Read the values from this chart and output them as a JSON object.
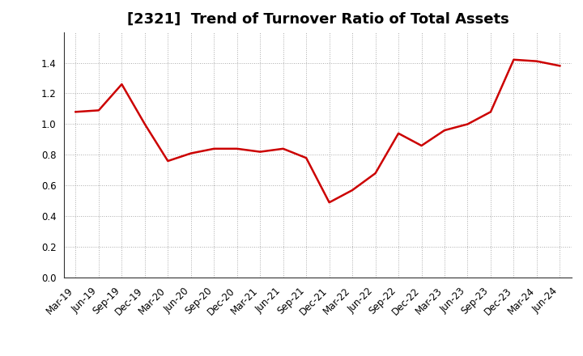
{
  "title": "[2321]  Trend of Turnover Ratio of Total Assets",
  "x_labels": [
    "Mar-19",
    "Jun-19",
    "Sep-19",
    "Dec-19",
    "Mar-20",
    "Jun-20",
    "Sep-20",
    "Dec-20",
    "Mar-21",
    "Jun-21",
    "Sep-21",
    "Dec-21",
    "Mar-22",
    "Jun-22",
    "Sep-22",
    "Dec-22",
    "Mar-23",
    "Jun-23",
    "Sep-23",
    "Dec-23",
    "Mar-24",
    "Jun-24"
  ],
  "values": [
    1.08,
    1.09,
    1.26,
    1.0,
    0.76,
    0.81,
    0.84,
    0.84,
    0.82,
    0.84,
    0.78,
    0.49,
    0.57,
    0.68,
    0.94,
    0.86,
    0.96,
    1.0,
    1.08,
    1.42,
    1.41,
    1.38
  ],
  "line_color": "#CC0000",
  "line_width": 1.8,
  "ylim": [
    0.0,
    1.6
  ],
  "yticks": [
    0.0,
    0.2,
    0.4,
    0.6,
    0.8,
    1.0,
    1.2,
    1.4
  ],
  "grid_color": "#aaaaaa",
  "background_color": "#ffffff",
  "title_fontsize": 13,
  "tick_fontsize": 8.5
}
